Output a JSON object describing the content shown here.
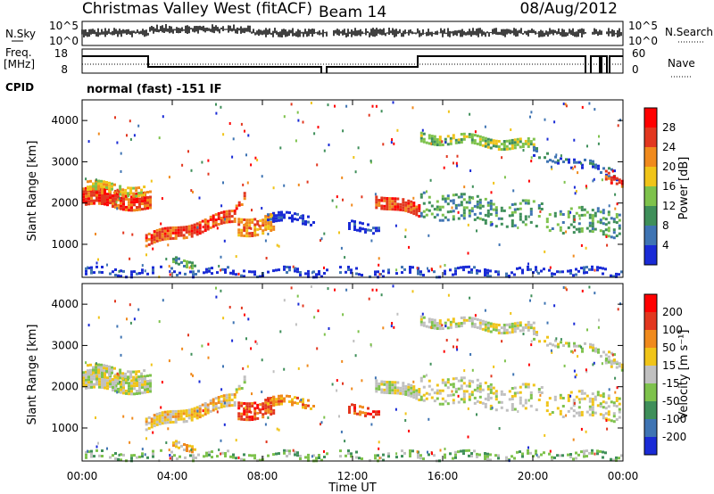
{
  "header": {
    "station": "Christmas Valley West (fitACF)",
    "beam": "Beam 14",
    "date": "08/Aug/2012"
  },
  "nsky_panel": {
    "left_label": "N.Sky",
    "right_label": "N.Search",
    "left_ticks": [
      "10^5",
      "10^0"
    ],
    "right_ticks": [
      "10^5",
      "10^0"
    ]
  },
  "freq_panel": {
    "left_label_1": "Freq.",
    "left_label_2": "[MHz]",
    "right_label": "Nave",
    "left_ticks": [
      "18",
      "8"
    ],
    "right_ticks": [
      "60",
      "0"
    ]
  },
  "cpid": {
    "label": "CPID",
    "text": "normal (fast) -151 IF"
  },
  "chart_data": {
    "type": "heatmap",
    "x_label": "Time UT",
    "x_ticks": [
      "00:00",
      "04:00",
      "08:00",
      "12:00",
      "16:00",
      "20:00",
      "00:00"
    ],
    "x_range_hours": [
      0,
      24
    ],
    "y_label": "Slant Range [km]",
    "y_ticks": [
      1000,
      2000,
      3000,
      4000
    ],
    "y_range_km": [
      200,
      4500
    ],
    "power": {
      "colorbar_label": "Power [dB]",
      "colorbar_ticks": [
        "4",
        "8",
        "12",
        "16",
        "20",
        "24",
        "28"
      ],
      "colors": [
        "#1a2bd6",
        "#3f74b3",
        "#3f8f5a",
        "#7ec24c",
        "#f0c419",
        "#f08a1d",
        "#e2371f",
        "#ff0000"
      ]
    },
    "velocity": {
      "colorbar_label": "Velocity [m s⁻¹]",
      "colorbar_ticks": [
        "200",
        "100",
        "50",
        "15",
        "-15",
        "-50",
        "-100",
        "-200"
      ],
      "colors": [
        "#1a2bd6",
        "#3f74b3",
        "#3f8f5a",
        "#7ec24c",
        "#c0c0c0",
        "#f0c419",
        "#f08a1d",
        "#e2371f",
        "#ff0000"
      ]
    }
  }
}
